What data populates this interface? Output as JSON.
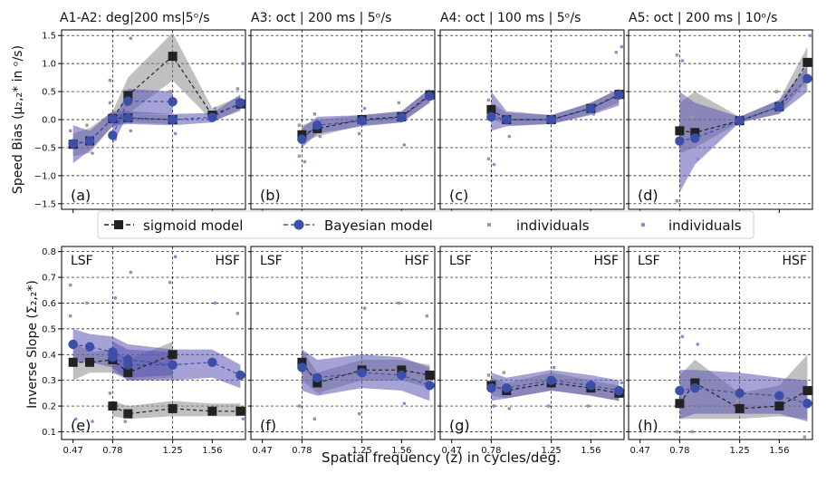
{
  "figure": {
    "xlabel": "Spatial frequency (z) in cycles/deg.",
    "top_ylabel": "Speed Bias (μ₂,₂* in ᵒ/s)",
    "bottom_ylabel": "Inverse Slope (Σ₂,₂*)",
    "lsf_label": "LSF",
    "hsf_label": "HSF",
    "top_titles": [
      "A1-A2: deg|200 ms|5ᵒ/s",
      "A3:  oct | 200 ms |  5ᵒ/s",
      "A4:  oct | 100 ms |  5ᵒ/s",
      "A5:  oct | 200 ms | 10ᵒ/s"
    ],
    "panel_letters": [
      "(a)",
      "(b)",
      "(c)",
      "(d)",
      "(e)",
      "(f)",
      "(g)",
      "(h)"
    ],
    "x_ticks": [
      0.47,
      0.78,
      1.25,
      1.56
    ],
    "x_tick_labels": [
      "0.47",
      "0.78",
      "1.25",
      "1.56"
    ],
    "top_y_ticks": [
      -1.5,
      -1.0,
      -0.5,
      0.0,
      0.5,
      1.0,
      1.5
    ],
    "top_y_tick_labels": [
      "−1.5",
      "−1.0",
      "−0.5",
      "0.0",
      "0.5",
      "1.0",
      "1.5"
    ],
    "bottom_y_ticks": [
      0.1,
      0.2,
      0.3,
      0.4,
      0.5,
      0.6,
      0.7,
      0.8
    ],
    "bottom_y_tick_labels": [
      "0.1",
      "0.2",
      "0.3",
      "0.4",
      "0.5",
      "0.6",
      "0.7",
      "0.8"
    ],
    "colors": {
      "sigmoid": "#222222",
      "bayesian": "#3b4fa8",
      "sigmoid_band": "#8c8c8c",
      "bayesian_band": "#5b55b5",
      "ind_sig": "#9a9a9a",
      "ind_bay": "#8a8ad8"
    }
  },
  "legend": {
    "sigmoid_label": "sigmoid model",
    "bayesian_label": "Bayesian model",
    "individuals_sig_label": "individuals",
    "individuals_bay_label": "individuals"
  },
  "chart_data": [
    {
      "type": "line",
      "panel": "(a)",
      "title": "A1-A2: deg|200 ms|5ᵒ/s",
      "xlim": [
        0.38,
        1.82
      ],
      "ylim": [
        -1.6,
        1.6
      ],
      "series": [
        {
          "name": "sigmoid model",
          "x": [
            0.47,
            0.6,
            0.78,
            0.9,
            1.25,
            1.56,
            1.78
          ],
          "y": [
            -0.44,
            -0.38,
            0.02,
            0.43,
            1.13,
            0.08,
            0.28
          ],
          "lo": [
            -0.65,
            -0.6,
            -0.1,
            0.1,
            0.7,
            -0.02,
            0.15
          ],
          "hi": [
            -0.25,
            -0.15,
            0.15,
            0.75,
            1.55,
            0.2,
            0.42
          ]
        },
        {
          "name": "sigmoid model",
          "x": [
            0.78,
            0.9,
            1.25
          ],
          "y": [
            0.02,
            0.03,
            0.0
          ],
          "lo": [
            -0.1,
            -0.05,
            -0.08
          ],
          "hi": [
            0.1,
            0.1,
            0.08
          ]
        },
        {
          "name": "Bayesian model",
          "x": [
            0.47,
            0.6,
            0.78,
            0.9,
            1.25,
            1.56,
            1.78
          ],
          "y": [
            -0.43,
            -0.38,
            0.02,
            0.03,
            0.0,
            0.04,
            0.3
          ],
          "lo": [
            -0.78,
            -0.55,
            -0.12,
            -0.08,
            -0.1,
            -0.05,
            0.18
          ],
          "hi": [
            -0.1,
            -0.2,
            0.15,
            0.15,
            0.1,
            0.12,
            0.45
          ]
        },
        {
          "name": "Bayesian model",
          "x": [
            0.78,
            0.9,
            1.25
          ],
          "y": [
            -0.28,
            0.33,
            0.32
          ],
          "lo": [
            -0.45,
            0.1,
            0.1
          ],
          "hi": [
            -0.1,
            0.55,
            0.5
          ]
        }
      ],
      "individuals": {
        "x": [
          0.47,
          0.47,
          0.6,
          0.6,
          0.78,
          0.78,
          0.78,
          0.9,
          0.9,
          0.9,
          1.25,
          1.25,
          1.25,
          1.56,
          1.78,
          1.78
        ],
        "y": [
          -0.2,
          -0.55,
          -0.1,
          -0.6,
          0.3,
          -0.35,
          0.7,
          1.45,
          0.5,
          -0.2,
          0.5,
          -0.25,
          0.05,
          0.2,
          0.55,
          1.0
        ]
      }
    },
    {
      "type": "line",
      "panel": "(b)",
      "title": "A3:  oct | 200 ms |  5ᵒ/s",
      "xlim": [
        0.38,
        1.82
      ],
      "ylim": [
        -1.6,
        1.6
      ],
      "series": [
        {
          "name": "sigmoid model",
          "x": [
            0.78,
            0.9,
            1.25,
            1.56,
            1.78
          ],
          "y": [
            -0.27,
            -0.16,
            0.0,
            0.05,
            0.44
          ],
          "lo": [
            -0.4,
            -0.3,
            -0.1,
            -0.05,
            0.3
          ],
          "hi": [
            -0.1,
            0.0,
            0.08,
            0.15,
            0.55
          ]
        },
        {
          "name": "Bayesian model",
          "x": [
            0.78,
            0.9,
            1.25,
            1.56,
            1.78
          ],
          "y": [
            -0.35,
            -0.1,
            -0.02,
            0.04,
            0.42
          ],
          "lo": [
            -0.5,
            -0.25,
            -0.12,
            -0.05,
            0.3
          ],
          "hi": [
            -0.15,
            0.05,
            0.08,
            0.15,
            0.55
          ]
        }
      ],
      "individuals": {
        "x": [
          0.78,
          0.78,
          0.78,
          0.9,
          0.9,
          1.25,
          1.25,
          1.56,
          1.56,
          1.78
        ],
        "y": [
          -0.65,
          -0.75,
          -0.1,
          -0.3,
          0.1,
          0.2,
          -0.25,
          -0.45,
          0.3,
          0.5
        ]
      }
    },
    {
      "type": "line",
      "panel": "(c)",
      "title": "A4:  oct | 100 ms |  5ᵒ/s",
      "xlim": [
        0.38,
        1.82
      ],
      "ylim": [
        -1.6,
        1.6
      ],
      "series": [
        {
          "name": "sigmoid model",
          "x": [
            0.78,
            0.9,
            1.25,
            1.56,
            1.78
          ],
          "y": [
            0.18,
            0.0,
            0.0,
            0.2,
            0.45
          ],
          "lo": [
            0.02,
            -0.1,
            -0.08,
            0.1,
            0.3
          ],
          "hi": [
            0.3,
            0.12,
            0.08,
            0.3,
            0.55
          ]
        },
        {
          "name": "Bayesian model",
          "x": [
            0.78,
            0.9,
            1.25,
            1.56,
            1.78
          ],
          "y": [
            0.05,
            0.0,
            0.0,
            0.2,
            0.44
          ],
          "lo": [
            -0.2,
            -0.12,
            -0.08,
            0.08,
            0.25
          ],
          "hi": [
            0.5,
            0.15,
            0.08,
            0.3,
            0.55
          ]
        }
      ],
      "individuals": {
        "x": [
          0.78,
          0.78,
          0.78,
          0.9,
          1.25,
          1.56,
          1.78,
          1.78
        ],
        "y": [
          -0.7,
          -0.8,
          0.35,
          -0.3,
          0.05,
          0.1,
          1.2,
          1.3
        ]
      }
    },
    {
      "type": "line",
      "panel": "(d)",
      "title": "A5:  oct | 200 ms | 10ᵒ/s",
      "xlim": [
        0.38,
        1.82
      ],
      "ylim": [
        -1.6,
        1.6
      ],
      "series": [
        {
          "name": "sigmoid model",
          "x": [
            0.78,
            0.9,
            1.25,
            1.56,
            1.78
          ],
          "y": [
            -0.2,
            -0.23,
            -0.02,
            0.23,
            1.02
          ],
          "lo": [
            -0.6,
            -0.5,
            -0.05,
            0.1,
            0.7
          ],
          "hi": [
            0.3,
            0.5,
            0.05,
            0.35,
            1.3
          ]
        },
        {
          "name": "Bayesian model",
          "x": [
            0.78,
            0.9,
            1.25,
            1.56,
            1.78
          ],
          "y": [
            -0.38,
            -0.33,
            -0.02,
            0.23,
            0.73
          ],
          "lo": [
            -1.3,
            -0.8,
            -0.05,
            0.1,
            0.5
          ],
          "hi": [
            0.5,
            0.3,
            0.05,
            0.35,
            0.95
          ]
        }
      ],
      "individuals": {
        "x": [
          0.78,
          0.78,
          0.78,
          0.9,
          0.9,
          1.25,
          1.56,
          1.78,
          1.78
        ],
        "y": [
          1.15,
          1.05,
          -1.45,
          -0.7,
          0.05,
          0.05,
          0.5,
          1.5,
          0.6
        ]
      }
    },
    {
      "type": "line",
      "panel": "(e)",
      "xlim": [
        0.38,
        1.82
      ],
      "ylim": [
        0.07,
        0.82
      ],
      "series": [
        {
          "name": "sigmoid model",
          "x": [
            0.47,
            0.6,
            0.78,
            0.9,
            1.25
          ],
          "y": [
            0.37,
            0.37,
            0.38,
            0.33,
            0.4
          ],
          "lo": [
            0.3,
            0.33,
            0.33,
            0.3,
            0.31
          ],
          "hi": [
            0.45,
            0.41,
            0.42,
            0.38,
            0.45
          ]
        },
        {
          "name": "sigmoid model",
          "x": [
            0.78,
            0.9,
            1.25,
            1.56,
            1.78
          ],
          "y": [
            0.2,
            0.17,
            0.19,
            0.18,
            0.18
          ],
          "lo": [
            0.16,
            0.15,
            0.16,
            0.16,
            0.16
          ],
          "hi": [
            0.22,
            0.2,
            0.22,
            0.21,
            0.21
          ]
        },
        {
          "name": "Bayesian model",
          "x": [
            0.47,
            0.6,
            0.78,
            0.9,
            1.25,
            1.56,
            1.78
          ],
          "y": [
            0.44,
            0.43,
            0.41,
            0.38,
            0.36,
            0.37,
            0.32
          ],
          "lo": [
            0.37,
            0.37,
            0.35,
            0.3,
            0.3,
            0.31,
            0.27
          ],
          "hi": [
            0.5,
            0.48,
            0.47,
            0.44,
            0.42,
            0.42,
            0.36
          ]
        },
        {
          "name": "Bayesian model",
          "x": [
            0.78,
            0.9,
            1.25
          ],
          "y": [
            0.39,
            0.36,
            0.36
          ],
          "lo": [
            0.33,
            0.31,
            0.32
          ],
          "hi": [
            0.45,
            0.42,
            0.41
          ]
        }
      ],
      "individuals": {
        "x": [
          0.47,
          0.47,
          0.47,
          0.6,
          0.6,
          0.78,
          0.78,
          0.9,
          0.9,
          1.25,
          1.25,
          1.56,
          1.78,
          1.78
        ],
        "y": [
          0.67,
          0.15,
          0.55,
          0.14,
          0.6,
          0.62,
          0.25,
          0.72,
          0.14,
          0.78,
          0.68,
          0.6,
          0.56,
          0.15
        ]
      }
    },
    {
      "type": "line",
      "panel": "(f)",
      "xlim": [
        0.38,
        1.82
      ],
      "ylim": [
        0.07,
        0.82
      ],
      "series": [
        {
          "name": "sigmoid model",
          "x": [
            0.78,
            0.9,
            1.25,
            1.56,
            1.78
          ],
          "y": [
            0.37,
            0.29,
            0.34,
            0.34,
            0.32
          ],
          "lo": [
            0.3,
            0.25,
            0.3,
            0.3,
            0.27
          ],
          "hi": [
            0.42,
            0.33,
            0.38,
            0.38,
            0.36
          ]
        },
        {
          "name": "Bayesian model",
          "x": [
            0.78,
            0.9,
            1.25,
            1.56,
            1.78
          ],
          "y": [
            0.35,
            0.31,
            0.33,
            0.32,
            0.28
          ],
          "lo": [
            0.26,
            0.24,
            0.27,
            0.26,
            0.22
          ],
          "hi": [
            0.42,
            0.38,
            0.4,
            0.39,
            0.35
          ]
        }
      ],
      "individuals": {
        "x": [
          0.78,
          0.78,
          0.9,
          0.9,
          1.25,
          1.25,
          1.56,
          1.56,
          1.78
        ],
        "y": [
          0.2,
          0.38,
          0.15,
          0.25,
          0.17,
          0.58,
          0.6,
          0.21,
          0.55
        ]
      }
    },
    {
      "type": "line",
      "panel": "(g)",
      "xlim": [
        0.38,
        1.82
      ],
      "ylim": [
        0.07,
        0.82
      ],
      "series": [
        {
          "name": "sigmoid model",
          "x": [
            0.78,
            0.9,
            1.25,
            1.56,
            1.78
          ],
          "y": [
            0.28,
            0.26,
            0.29,
            0.27,
            0.25
          ],
          "lo": [
            0.24,
            0.23,
            0.26,
            0.24,
            0.22
          ],
          "hi": [
            0.31,
            0.29,
            0.33,
            0.3,
            0.28
          ]
        },
        {
          "name": "Bayesian model",
          "x": [
            0.78,
            0.9,
            1.25,
            1.56,
            1.78
          ],
          "y": [
            0.27,
            0.27,
            0.3,
            0.28,
            0.26
          ],
          "lo": [
            0.22,
            0.23,
            0.26,
            0.24,
            0.22
          ],
          "hi": [
            0.33,
            0.31,
            0.34,
            0.32,
            0.3
          ]
        }
      ],
      "individuals": {
        "x": [
          0.78,
          0.78,
          0.9,
          0.9,
          1.25,
          1.25,
          1.56,
          1.78
        ],
        "y": [
          0.32,
          0.2,
          0.33,
          0.19,
          0.2,
          0.35,
          0.2,
          0.29
        ]
      }
    },
    {
      "type": "line",
      "panel": "(h)",
      "xlim": [
        0.38,
        1.82
      ],
      "ylim": [
        0.07,
        0.82
      ],
      "series": [
        {
          "name": "sigmoid model",
          "x": [
            0.78,
            0.9,
            1.25,
            1.56,
            1.78
          ],
          "y": [
            0.21,
            0.29,
            0.19,
            0.2,
            0.26
          ],
          "lo": [
            0.15,
            0.15,
            0.15,
            0.16,
            0.15
          ],
          "hi": [
            0.32,
            0.38,
            0.25,
            0.28,
            0.4
          ]
        },
        {
          "name": "Bayesian model",
          "x": [
            0.78,
            0.9,
            1.25,
            1.56,
            1.78
          ],
          "y": [
            0.26,
            0.27,
            0.25,
            0.24,
            0.21
          ],
          "lo": [
            0.15,
            0.17,
            0.17,
            0.17,
            0.14
          ],
          "hi": [
            0.34,
            0.34,
            0.33,
            0.31,
            0.3
          ]
        }
      ],
      "individuals": {
        "x": [
          0.78,
          0.78,
          0.9,
          0.9,
          1.25,
          1.56,
          1.78
        ],
        "y": [
          0.1,
          0.47,
          0.1,
          0.44,
          0.22,
          0.18,
          0.08
        ]
      }
    }
  ]
}
